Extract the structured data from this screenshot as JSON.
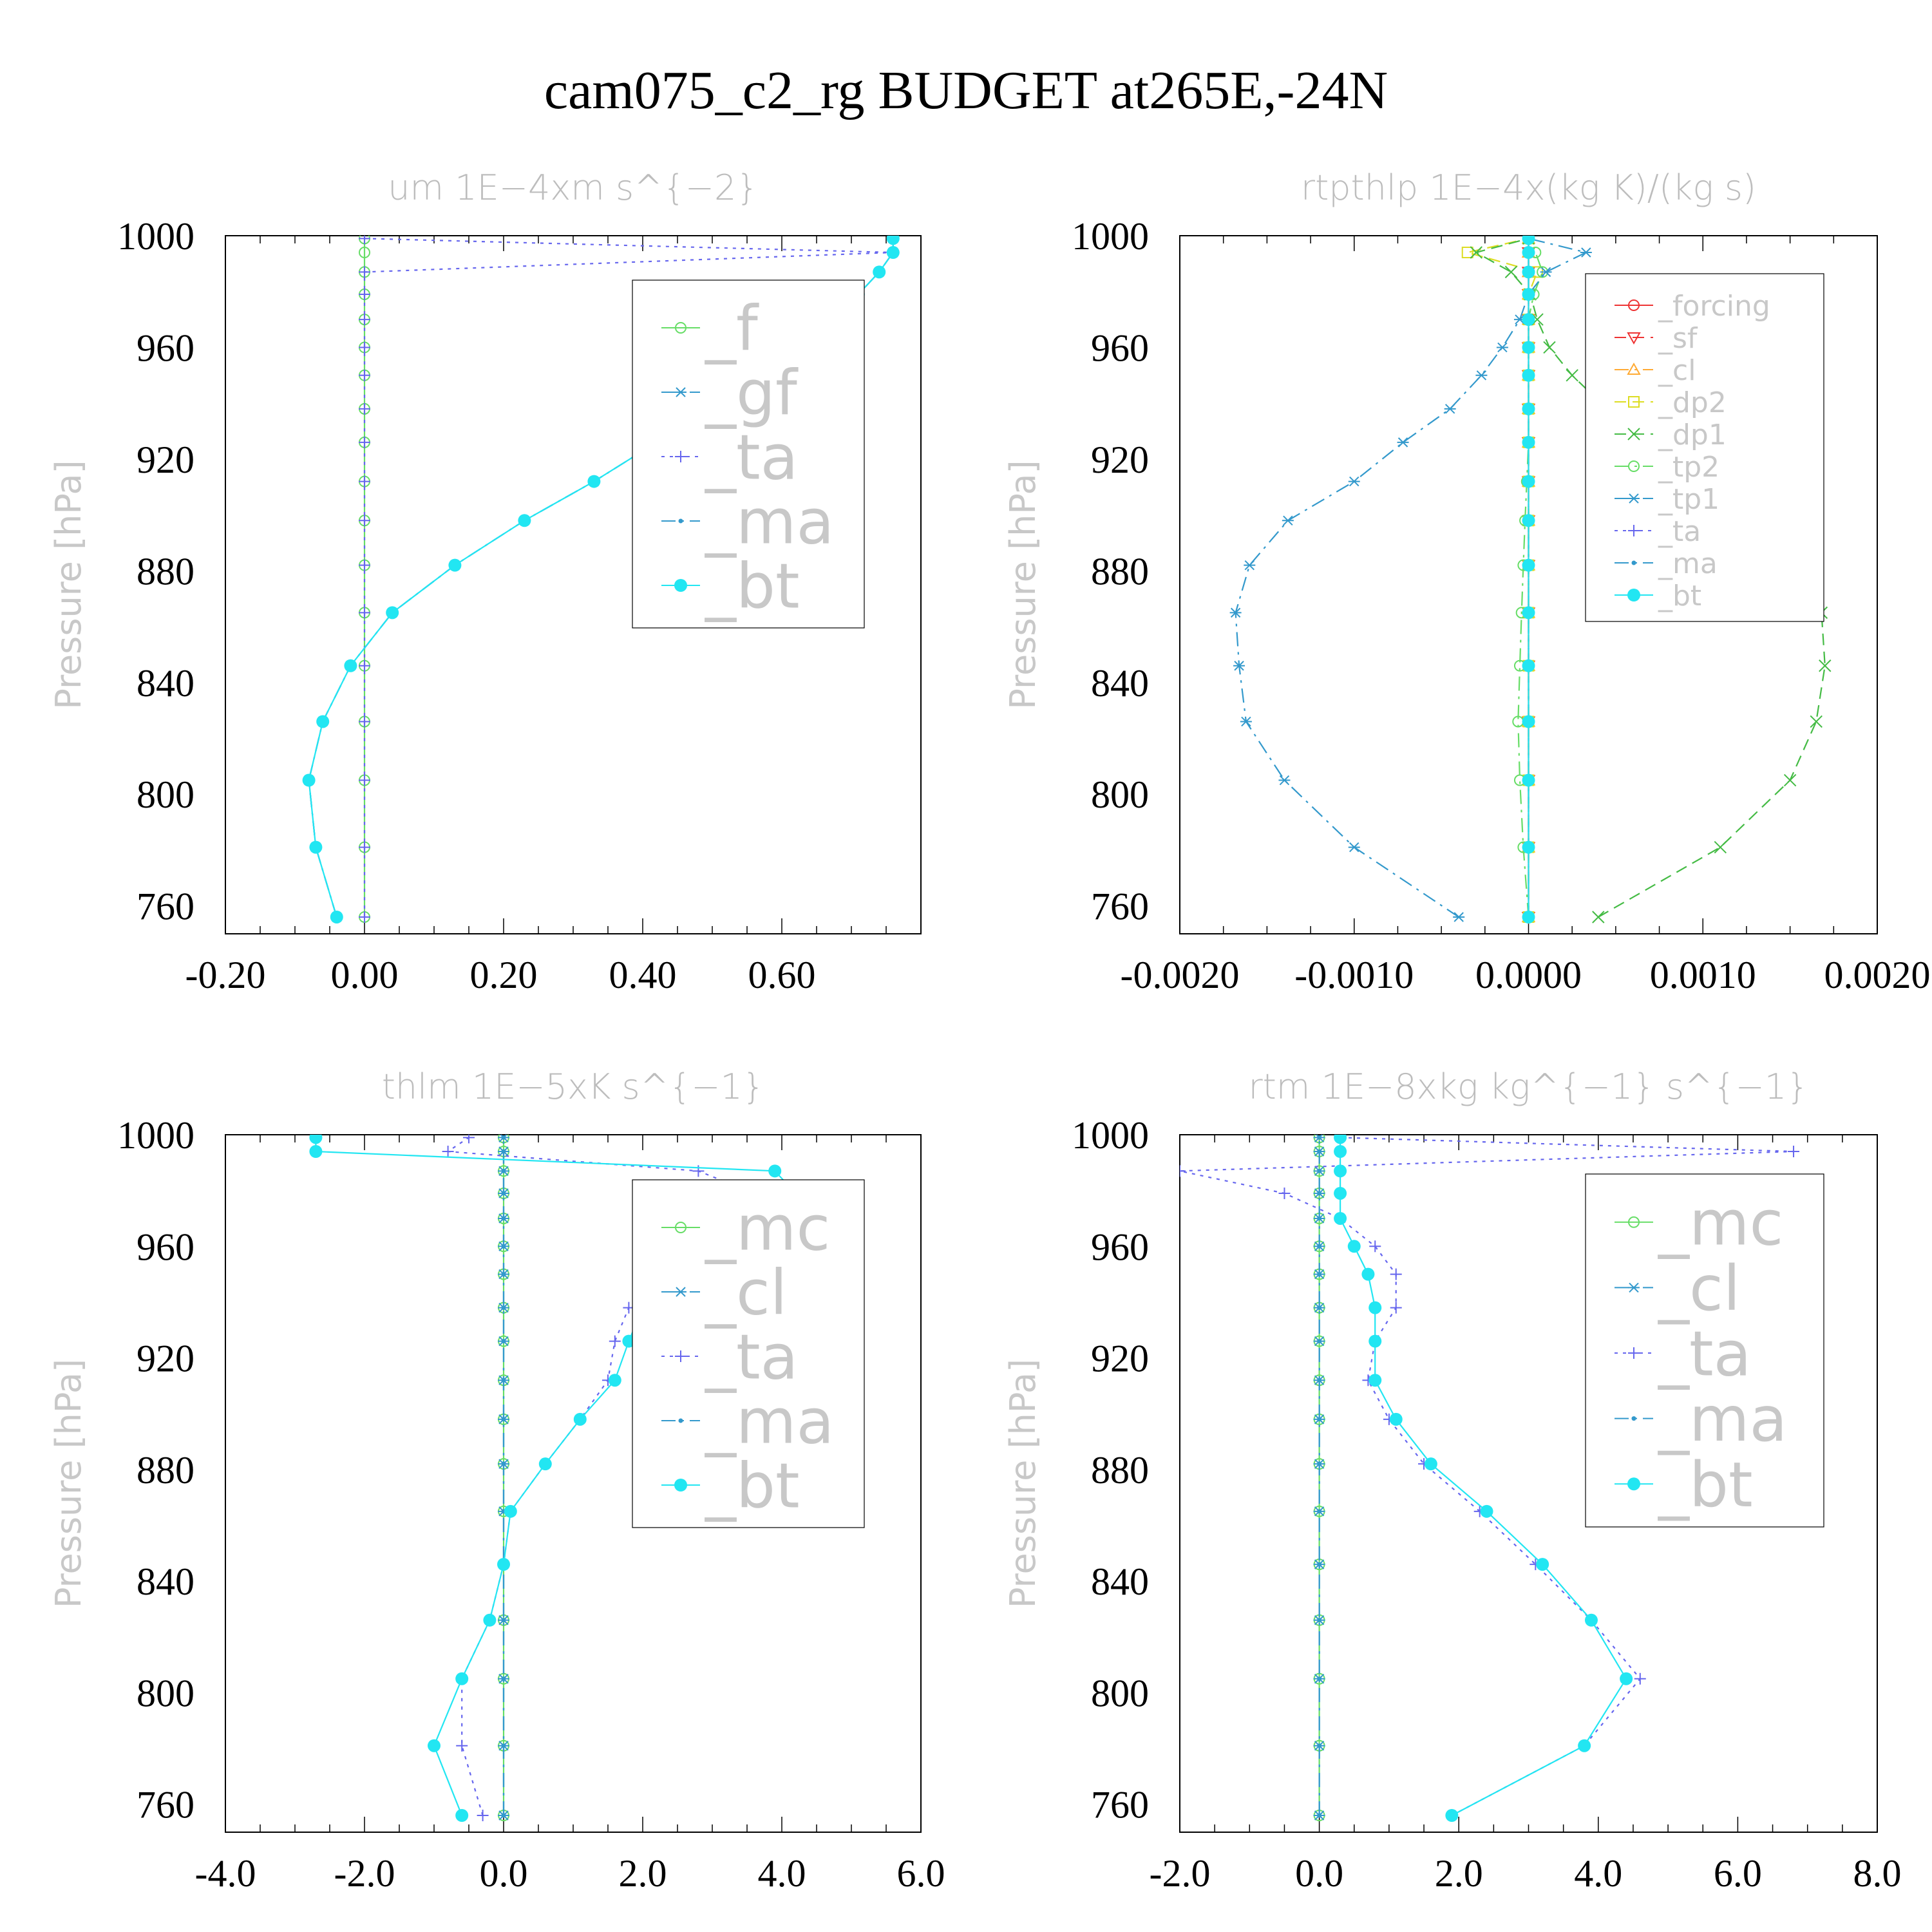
{
  "title": "cam075_c2_rg  BUDGET at265E,-24N",
  "chart_data": [
    {
      "type": "line",
      "title": "um   1E−4xm s^{−2}",
      "ylabel": "Pressure [hPa]",
      "xlim": [
        -0.2,
        0.8
      ],
      "xticks": [
        "-0.20",
        "0.00",
        "0.20",
        "0.40",
        "0.60"
      ],
      "xtick_values": [
        -0.2,
        0,
        0.2,
        0.4,
        0.6
      ],
      "ylim": [
        1000,
        750
      ],
      "yticks": [
        "760",
        "800",
        "840",
        "880",
        "920",
        "960",
        "1000"
      ],
      "pressure": [
        756,
        781,
        805,
        826,
        846,
        865,
        882,
        898,
        912,
        926,
        938,
        950,
        960,
        970,
        979,
        987,
        994,
        999
      ],
      "legend_size": 96,
      "legend_spacing": 1.0,
      "series": [
        {
          "name": "_f",
          "color": "#66dd66",
          "marker": "circle-open",
          "dash": "none",
          "values": [
            0,
            0,
            0,
            0,
            0,
            0,
            0,
            0,
            0,
            0,
            0,
            0,
            0,
            0,
            0,
            0,
            0,
            0
          ]
        },
        {
          "name": "_gf",
          "color": "#3399cc",
          "marker": "star",
          "dash": "dashdot",
          "values": [
            -0.04,
            -0.07,
            -0.08,
            -0.06,
            -0.02,
            0.04,
            0.13,
            0.23,
            0.33,
            0.42,
            0.5,
            0.56,
            0.62,
            0.67,
            0.71,
            0.74,
            0.76,
            0.76
          ]
        },
        {
          "name": "_ta",
          "color": "#6666ee",
          "marker": "plus",
          "dash": "dot",
          "values": [
            0,
            0,
            0,
            0,
            0,
            0,
            0,
            0,
            0,
            0,
            0,
            0,
            0,
            0,
            0,
            0,
            0.76,
            0.0
          ]
        },
        {
          "name": "_ma",
          "color": "#3399cc",
          "marker": "dot",
          "dash": "dashdot",
          "values": [
            -0.04,
            -0.07,
            -0.08,
            -0.06,
            -0.02,
            0.04,
            0.13,
            0.23,
            0.33,
            0.42,
            0.5,
            0.56,
            0.62,
            0.67,
            0.71,
            0.74,
            0.76,
            0.76
          ]
        },
        {
          "name": "_bt",
          "color": "#22e6f2",
          "marker": "filled",
          "dash": "none",
          "values": [
            -0.04,
            -0.07,
            -0.08,
            -0.06,
            -0.02,
            0.04,
            0.13,
            0.23,
            0.33,
            0.42,
            0.5,
            0.56,
            0.62,
            0.67,
            0.71,
            0.74,
            0.76,
            0.76
          ]
        }
      ]
    },
    {
      "type": "line",
      "title": "rtpthlp   1E−4x(kg K)/(kg s)",
      "ylabel": "Pressure [hPa]",
      "xlim": [
        -0.002,
        0.002
      ],
      "xticks": [
        "-0.0020",
        "-0.0010",
        "0.0000",
        "0.0010",
        "0.0020"
      ],
      "xtick_values": [
        -0.002,
        -0.001,
        0,
        0.001,
        0.002
      ],
      "ylim": [
        1000,
        750
      ],
      "yticks": [
        "760",
        "800",
        "840",
        "880",
        "920",
        "960",
        "1000"
      ],
      "pressure": [
        756,
        781,
        805,
        826,
        846,
        865,
        882,
        898,
        912,
        926,
        938,
        950,
        960,
        970,
        979,
        987,
        994,
        999
      ],
      "legend_size": 44,
      "legend_spacing": 0.6,
      "series": [
        {
          "name": "_forcing",
          "color": "#ee3333",
          "marker": "circle-open",
          "dash": "none",
          "values": [
            0,
            0,
            0,
            0,
            0,
            0,
            0,
            0,
            0,
            0,
            0,
            0,
            0,
            0,
            0,
            0,
            0,
            0
          ]
        },
        {
          "name": "_sf",
          "color": "#ee3333",
          "marker": "tri-down",
          "dash": "dash",
          "values": [
            0,
            0,
            0,
            0,
            0,
            0,
            0,
            0,
            0,
            0,
            0,
            0,
            0,
            0,
            0,
            0,
            0,
            0
          ]
        },
        {
          "name": "_cl",
          "color": "#ffaa33",
          "marker": "tri-up",
          "dash": "dashdot",
          "values": [
            0,
            0,
            0,
            0,
            0,
            0,
            0,
            0,
            0,
            0,
            0,
            0,
            0,
            0,
            0,
            0,
            0,
            0
          ]
        },
        {
          "name": "_dp2",
          "color": "#dddd22",
          "marker": "square-open",
          "dash": "dash",
          "values": [
            0,
            0,
            0,
            0,
            0,
            0,
            0,
            0,
            0,
            0,
            0,
            0,
            0,
            0,
            0,
            5e-05,
            -0.00035,
            0
          ]
        },
        {
          "name": "_dp1",
          "color": "#44bb44",
          "marker": "x",
          "dash": "dash",
          "values": [
            0.0004,
            0.0011,
            0.0015,
            0.00165,
            0.0017,
            0.00168,
            0.00155,
            0.0013,
            0.001,
            0.0007,
            0.00045,
            0.00025,
            0.00012,
            5e-05,
            1e-05,
            -0.0001,
            -0.0003,
            0
          ]
        },
        {
          "name": "_tp2",
          "color": "#66dd66",
          "marker": "circle-open",
          "dash": "dashdot",
          "values": [
            0,
            -3e-05,
            -5e-05,
            -6e-05,
            -5e-05,
            -4e-05,
            -3e-05,
            -2e-05,
            -1e-05,
            0,
            0,
            0,
            0,
            0,
            3e-05,
            8e-05,
            4e-05,
            0
          ]
        },
        {
          "name": "_tp1",
          "color": "#3399cc",
          "marker": "star",
          "dash": "dashdot",
          "values": [
            -0.0004,
            -0.001,
            -0.0014,
            -0.00162,
            -0.00166,
            -0.00168,
            -0.0016,
            -0.00138,
            -0.001,
            -0.00072,
            -0.00045,
            -0.00027,
            -0.00015,
            -5e-05,
            0,
            0.0001,
            0.00033,
            0
          ]
        },
        {
          "name": "_ta",
          "color": "#6666ee",
          "marker": "plus",
          "dash": "dot",
          "values": [
            0,
            0,
            0,
            0,
            0,
            0,
            0,
            0,
            0,
            0,
            0,
            0,
            0,
            0,
            0,
            0,
            0,
            0
          ]
        },
        {
          "name": "_ma",
          "color": "#3399cc",
          "marker": "dot",
          "dash": "dashdot",
          "values": [
            0,
            0,
            0,
            0,
            0,
            0,
            0,
            0,
            0,
            0,
            0,
            0,
            0,
            0,
            0,
            0,
            0,
            0
          ]
        },
        {
          "name": "_bt",
          "color": "#22e6f2",
          "marker": "filled",
          "dash": "none",
          "values": [
            0,
            0,
            0,
            0,
            0,
            0,
            0,
            0,
            0,
            0,
            0,
            0,
            0,
            0,
            0,
            0,
            0,
            0
          ]
        }
      ]
    },
    {
      "type": "line",
      "title": "thlm   1E−5xK s^{−1}",
      "ylabel": "Pressure [hPa]",
      "xlim": [
        -4.0,
        6.0
      ],
      "xticks": [
        "-4.0",
        "-2.0",
        "0.0",
        "2.0",
        "4.0",
        "6.0"
      ],
      "xtick_values": [
        -4,
        -2,
        0,
        2,
        4,
        6
      ],
      "ylim": [
        1000,
        750
      ],
      "yticks": [
        "760",
        "800",
        "840",
        "880",
        "920",
        "960",
        "1000"
      ],
      "pressure": [
        756,
        781,
        805,
        826,
        846,
        865,
        882,
        898,
        912,
        926,
        938,
        950,
        960,
        970,
        979,
        987,
        994,
        999
      ],
      "legend_size": 96,
      "legend_spacing": 1.0,
      "series": [
        {
          "name": "_mc",
          "color": "#66dd66",
          "marker": "circle-open",
          "dash": "none",
          "values": [
            0,
            0,
            0,
            0,
            0,
            0,
            0,
            0,
            0,
            0,
            0,
            0,
            0,
            0,
            0,
            0,
            0,
            0
          ]
        },
        {
          "name": "_cl",
          "color": "#3399cc",
          "marker": "star",
          "dash": "dashdot",
          "values": [
            0,
            0,
            0,
            0,
            0,
            0,
            0,
            0,
            0,
            0,
            0,
            0,
            0,
            0,
            0,
            0,
            0,
            0
          ]
        },
        {
          "name": "_ta",
          "color": "#6666ee",
          "marker": "plus",
          "dash": "dot",
          "values": [
            -0.3,
            -0.6,
            -0.6,
            -0.2,
            0.0,
            0.1,
            0.6,
            1.1,
            1.5,
            1.6,
            1.8,
            2.3,
            2.9,
            3.5,
            3.6,
            2.8,
            -0.8,
            -0.5
          ]
        },
        {
          "name": "_ma",
          "color": "#3399cc",
          "marker": "dot",
          "dash": "dashdot",
          "values": [
            0,
            0,
            0,
            0,
            0,
            0,
            0,
            0,
            0,
            0,
            0,
            0,
            0,
            0,
            0,
            0,
            0,
            0
          ]
        },
        {
          "name": "_bt",
          "color": "#22e6f2",
          "marker": "filled",
          "dash": "none",
          "values": [
            -0.6,
            -1.0,
            -0.6,
            -0.2,
            0.0,
            0.1,
            0.6,
            1.1,
            1.6,
            1.8,
            2.0,
            2.5,
            3.3,
            4.0,
            4.2,
            3.9,
            -2.7,
            -2.7
          ]
        }
      ]
    },
    {
      "type": "line",
      "title": "rtm   1E−8xkg kg^{−1} s^{−1}",
      "ylabel": "Pressure [hPa]",
      "xlim": [
        -2.0,
        8.0
      ],
      "xticks": [
        "-2.0",
        "0.0",
        "2.0",
        "4.0",
        "6.0",
        "8.0"
      ],
      "xtick_values": [
        -2,
        0,
        2,
        4,
        6,
        8
      ],
      "ylim": [
        1000,
        750
      ],
      "yticks": [
        "760",
        "800",
        "840",
        "880",
        "920",
        "960",
        "1000"
      ],
      "pressure": [
        756,
        781,
        805,
        826,
        846,
        865,
        882,
        898,
        912,
        926,
        938,
        950,
        960,
        970,
        979,
        987,
        994,
        999
      ],
      "legend_size": 96,
      "legend_spacing": 1.0,
      "series": [
        {
          "name": "_mc",
          "color": "#66dd66",
          "marker": "circle-open",
          "dash": "none",
          "values": [
            0,
            0,
            0,
            0,
            0,
            0,
            0,
            0,
            0,
            0,
            0,
            0,
            0,
            0,
            0,
            0,
            0,
            0
          ]
        },
        {
          "name": "_cl",
          "color": "#3399cc",
          "marker": "star",
          "dash": "dashdot",
          "values": [
            0,
            0,
            0,
            0,
            0,
            0,
            0,
            0,
            0,
            0,
            0,
            0,
            0,
            0,
            0,
            0,
            0,
            0
          ]
        },
        {
          "name": "_ta",
          "color": "#6666ee",
          "marker": "plus",
          "dash": "dot",
          "values": [
            1.9,
            3.8,
            4.6,
            3.9,
            3.1,
            2.3,
            1.5,
            1.0,
            0.7,
            0.8,
            1.1,
            1.1,
            0.8,
            0.3,
            -0.5,
            -2.0,
            6.8,
            0.3
          ]
        },
        {
          "name": "_ma",
          "color": "#3399cc",
          "marker": "dot",
          "dash": "dashdot",
          "values": [
            0,
            0,
            0,
            0,
            0,
            0,
            0,
            0,
            0,
            0,
            0,
            0,
            0,
            0,
            0,
            0,
            0,
            0
          ]
        },
        {
          "name": "_bt",
          "color": "#22e6f2",
          "marker": "filled",
          "dash": "none",
          "values": [
            1.9,
            3.8,
            4.4,
            3.9,
            3.2,
            2.4,
            1.6,
            1.1,
            0.8,
            0.8,
            0.8,
            0.7,
            0.5,
            0.3,
            0.3,
            0.3,
            0.3,
            0.3
          ]
        }
      ]
    }
  ]
}
